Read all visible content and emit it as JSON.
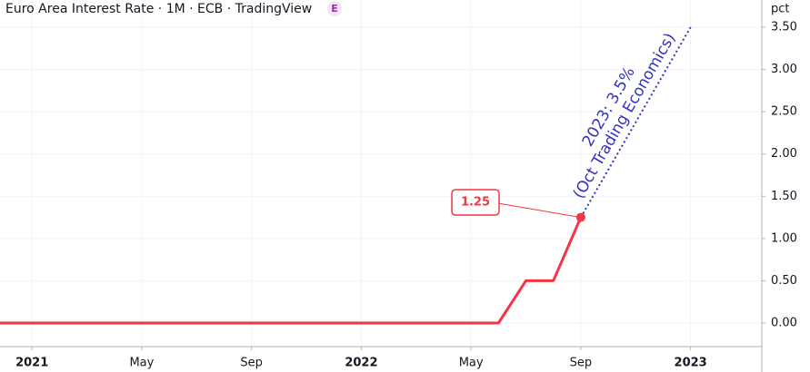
{
  "chart_data": {
    "type": "line",
    "title": "Euro Area Interest Rate · 1M · ECB · TradingView",
    "badge": "E",
    "y_unit": "pct",
    "x": [
      "2020-12",
      "2021-01",
      "2021-02",
      "2021-03",
      "2021-04",
      "2021-05",
      "2021-06",
      "2021-07",
      "2021-08",
      "2021-09",
      "2021-10",
      "2021-11",
      "2021-12",
      "2022-01",
      "2022-02",
      "2022-03",
      "2022-04",
      "2022-05",
      "2022-06",
      "2022-07",
      "2022-08",
      "2022-09"
    ],
    "values": [
      0,
      0,
      0,
      0,
      0,
      0,
      0,
      0,
      0,
      0,
      0,
      0,
      0,
      0,
      0,
      0,
      0,
      0,
      0,
      0.5,
      0.5,
      1.25
    ],
    "color": "#f23645",
    "xlim": [
      "2020-12",
      "2023-03"
    ],
    "xticks": [
      {
        "value": "2021-01",
        "label": "2021"
      },
      {
        "value": "2021-05",
        "label": "May"
      },
      {
        "value": "2021-09",
        "label": "Sep"
      },
      {
        "value": "2022-01",
        "label": "2022"
      },
      {
        "value": "2022-05",
        "label": "May"
      },
      {
        "value": "2022-09",
        "label": "Sep"
      },
      {
        "value": "2023-01",
        "label": "2023"
      }
    ],
    "ylim": [
      -0.13,
      3.6
    ],
    "yticks": [
      {
        "value": 0,
        "label": "0.00"
      },
      {
        "value": 0.5,
        "label": "0.50"
      },
      {
        "value": 1,
        "label": "1.00"
      },
      {
        "value": 1.5,
        "label": "1.50"
      },
      {
        "value": 2,
        "label": "2.00"
      },
      {
        "value": 2.5,
        "label": "2.50"
      },
      {
        "value": 3,
        "label": "3.00"
      },
      {
        "value": 3.5,
        "label": "3.50"
      }
    ],
    "grid": true,
    "annotation": {
      "text": [
        "2023: 3.5%",
        "(Oct Trading Economics)"
      ],
      "x": "2023-01",
      "value": 3.5,
      "color": "#3333bb"
    }
  }
}
